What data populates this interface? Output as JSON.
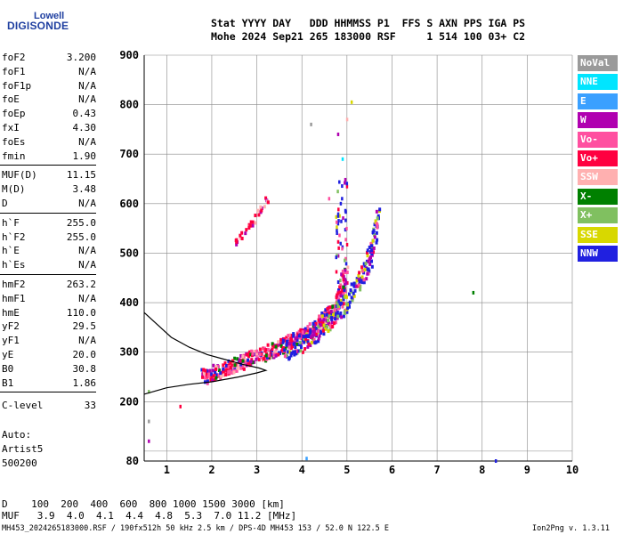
{
  "logo": {
    "top": "Lowell",
    "main": "DIGISONDE"
  },
  "header": {
    "line1": "Stat YYYY DAY   DDD HHMMSS P1  FFS S AXN PPS IGA PS",
    "line2": "Mohe 2024 Sep21 265 183000 RSF     1 514 100 03+ C2"
  },
  "params": [
    {
      "name": "foF2",
      "value": "3.200"
    },
    {
      "name": "foF1",
      "value": "N/A"
    },
    {
      "name": "foF1p",
      "value": "N/A"
    },
    {
      "name": "foE",
      "value": "N/A"
    },
    {
      "name": "foEp",
      "value": "0.43"
    },
    {
      "name": "fxI",
      "value": "4.30"
    },
    {
      "name": "foEs",
      "value": "N/A"
    },
    {
      "name": "fmin",
      "value": "1.90"
    },
    {
      "name": "MUF(D)",
      "value": "11.15"
    },
    {
      "name": "M(D)",
      "value": "3.48"
    },
    {
      "name": "D",
      "value": "N/A"
    },
    {
      "name": "h`F",
      "value": "255.0"
    },
    {
      "name": "h`F2",
      "value": "255.0"
    },
    {
      "name": "h`E",
      "value": "N/A"
    },
    {
      "name": "h`Es",
      "value": "N/A"
    },
    {
      "name": "hmF2",
      "value": "263.2"
    },
    {
      "name": "hmF1",
      "value": "N/A"
    },
    {
      "name": "hmE",
      "value": "110.0"
    },
    {
      "name": "yF2",
      "value": "29.5"
    },
    {
      "name": "yF1",
      "value": "N/A"
    },
    {
      "name": "yE",
      "value": "20.0"
    },
    {
      "name": "B0",
      "value": "30.8"
    },
    {
      "name": "B1",
      "value": "1.86"
    },
    {
      "name": "C-level",
      "value": "33"
    }
  ],
  "auto": {
    "line1": "Auto:",
    "line2": "Artist5",
    "line3": "500200"
  },
  "legend": [
    {
      "label": "NoVal",
      "color": "#9a9a9a"
    },
    {
      "label": "NNE",
      "color": "#00e5ff"
    },
    {
      "label": "E",
      "color": "#3aa0ff"
    },
    {
      "label": "W",
      "color": "#b000b0"
    },
    {
      "label": "Vo-",
      "color": "#ff50a0"
    },
    {
      "label": "Vo+",
      "color": "#ff0040"
    },
    {
      "label": "SSW",
      "color": "#ffb0b0"
    },
    {
      "label": "X-",
      "color": "#008000"
    },
    {
      "label": "X+",
      "color": "#80c060"
    },
    {
      "label": "SSE",
      "color": "#d8d800"
    },
    {
      "label": "NNW",
      "color": "#2020e0"
    }
  ],
  "footer": {
    "d_row": "D    100  200  400  600  800 1000 1500 3000 [km]",
    "muf_row": "MUF   3.9  4.0  4.1  4.4  4.8  5.3  7.0 11.2 [MHz]",
    "credits_left": "MH453_2024265183000.RSF / 190fx512h 50 kHz 2.5 km / DPS-4D MH453 153 / 52.0 N 122.5 E",
    "credits_right": "Ion2Png v. 1.3.11"
  },
  "chart_data": {
    "type": "scatter",
    "xlim": [
      0.5,
      10
    ],
    "ylim": [
      80,
      900
    ],
    "x_ticks": [
      1,
      2,
      3,
      4,
      5,
      6,
      7,
      8,
      9,
      10
    ],
    "y_ticks": [
      100,
      200,
      300,
      400,
      500,
      600,
      700,
      800,
      900
    ],
    "y_ticks_labeled": [
      80,
      200,
      300,
      400,
      500,
      600,
      700,
      800,
      900
    ],
    "grid": true,
    "profile_curve": [
      [
        0.5,
        380
      ],
      [
        0.8,
        355
      ],
      [
        1.1,
        330
      ],
      [
        1.5,
        310
      ],
      [
        1.9,
        295
      ],
      [
        2.3,
        285
      ],
      [
        2.7,
        275
      ],
      [
        3.05,
        268
      ],
      [
        3.2,
        263
      ],
      [
        3.0,
        258
      ],
      [
        2.6,
        250
      ],
      [
        2.0,
        240
      ],
      [
        1.5,
        235
      ],
      [
        1.0,
        228
      ],
      [
        0.5,
        215
      ]
    ],
    "trace_o": [
      [
        1.8,
        250
      ],
      [
        2.0,
        256
      ],
      [
        2.2,
        262
      ],
      [
        2.4,
        270
      ],
      [
        2.6,
        278
      ],
      [
        2.8,
        285
      ],
      [
        3.0,
        292
      ],
      [
        3.2,
        298
      ],
      [
        3.4,
        305
      ],
      [
        3.6,
        313
      ],
      [
        3.8,
        322
      ],
      [
        4.0,
        332
      ],
      [
        4.2,
        344
      ],
      [
        4.4,
        358
      ],
      [
        4.6,
        375
      ],
      [
        4.8,
        400
      ],
      [
        4.9,
        430
      ],
      [
        5.0,
        470
      ]
    ],
    "trace_x": [
      [
        3.6,
        300
      ],
      [
        3.8,
        310
      ],
      [
        4.0,
        320
      ],
      [
        4.2,
        332
      ],
      [
        4.4,
        346
      ],
      [
        4.6,
        362
      ],
      [
        4.8,
        380
      ],
      [
        5.0,
        402
      ],
      [
        5.2,
        428
      ],
      [
        5.4,
        460
      ],
      [
        5.5,
        490
      ],
      [
        5.6,
        530
      ],
      [
        5.7,
        570
      ]
    ],
    "trace_upper": [
      [
        2.5,
        520
      ],
      [
        2.7,
        540
      ],
      [
        2.9,
        560
      ],
      [
        3.1,
        585
      ],
      [
        3.3,
        615
      ]
    ],
    "sparse_points": [
      [
        4.2,
        760
      ],
      [
        4.8,
        740
      ],
      [
        5.0,
        770
      ],
      [
        5.1,
        805
      ],
      [
        4.9,
        690
      ],
      [
        4.6,
        610
      ],
      [
        7.8,
        420
      ],
      [
        8.3,
        80
      ],
      [
        4.1,
        85
      ],
      [
        1.3,
        190
      ],
      [
        0.6,
        220
      ],
      [
        0.6,
        160
      ],
      [
        0.6,
        120
      ]
    ]
  }
}
